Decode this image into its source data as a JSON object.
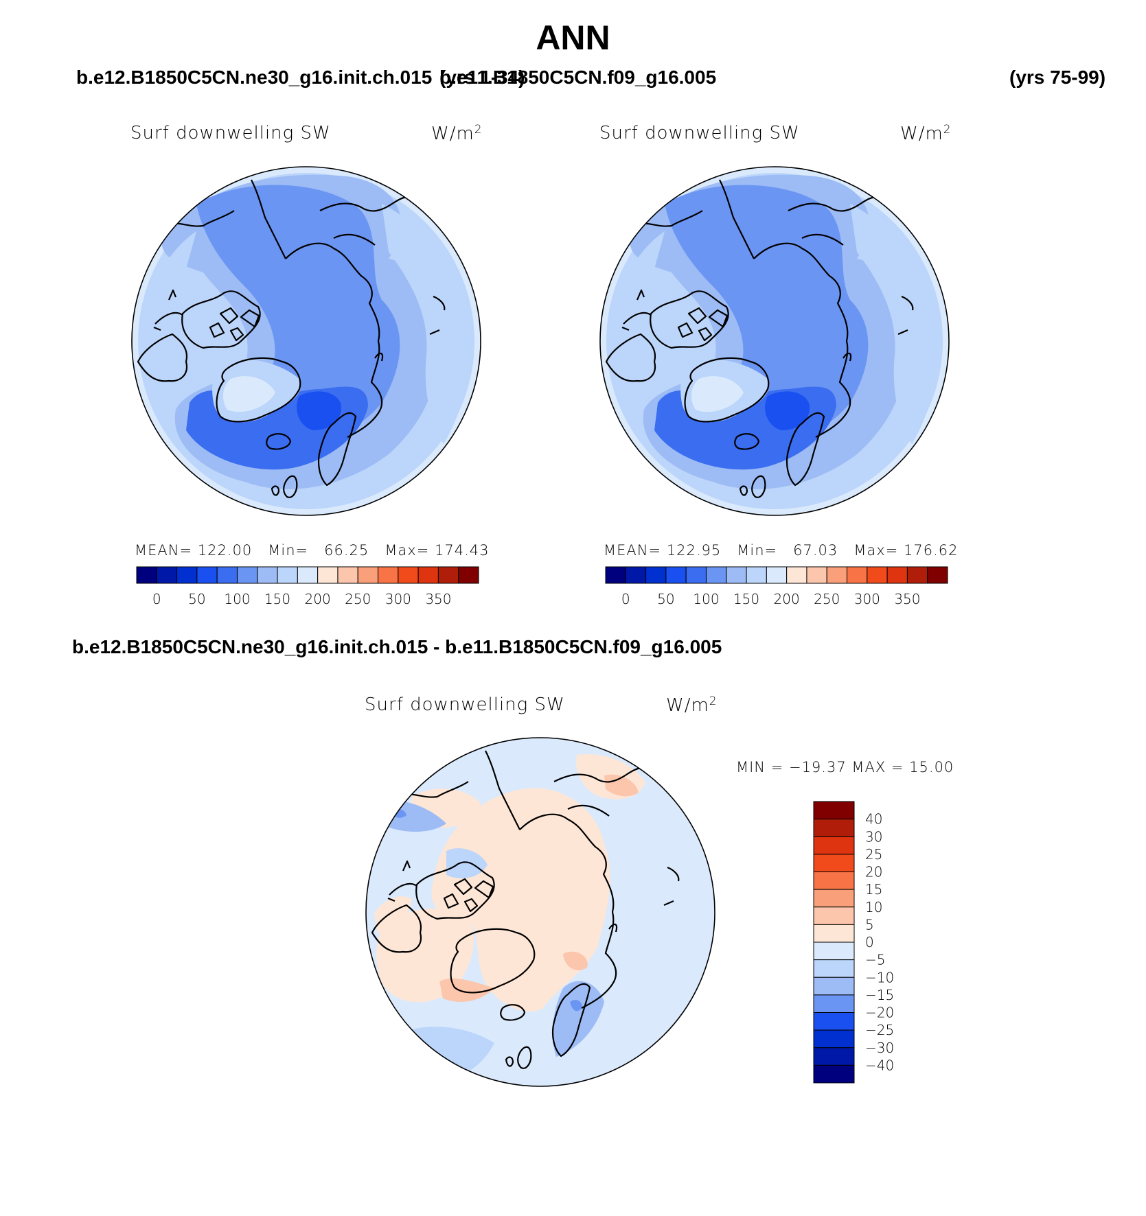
{
  "header": {
    "title": "ANN",
    "case_a": "b.e12.B1850C5CN.ne30_g16.init.ch.015",
    "case_a_years": "(yrs 1-34)",
    "case_b": "b.e11.B1850C5CN.f09_g16.005",
    "case_b_years": "(yrs 75-99)",
    "diff_label": "b.e12.B1850C5CN.ne30_g16.init.ch.015 - b.e11.B1850C5CN.f09_g16.005"
  },
  "panels": [
    {
      "id": "case-a",
      "variable": "Surf downwelling SW",
      "unit_base": "W/m",
      "unit_exp": "2",
      "stats": {
        "mean_label": "MEAN=",
        "mean": "122.00",
        "min_label": "Min=",
        "min": "66.25",
        "max_label": "Max=",
        "max": "174.43"
      }
    },
    {
      "id": "case-b",
      "variable": "Surf downwelling SW",
      "unit_base": "W/m",
      "unit_exp": "2",
      "stats": {
        "mean_label": "MEAN=",
        "mean": "122.95",
        "min_label": "Min=",
        "min": "67.03",
        "max_label": "Max=",
        "max": "176.62"
      }
    },
    {
      "id": "difference",
      "variable": "Surf downwelling SW",
      "unit_base": "W/m",
      "unit_exp": "2",
      "stats_text": "MIN = −19.37 MAX =   15.00"
    }
  ],
  "colorbar_abs": {
    "colors": [
      "#00007f",
      "#0018a8",
      "#0030d0",
      "#1a50f0",
      "#3a6df0",
      "#6b95f2",
      "#9dbcf5",
      "#bcd5fa",
      "#daeafc",
      "#fde6d6",
      "#fcc6ac",
      "#f9a07a",
      "#f87446",
      "#f14b1c",
      "#de3510",
      "#b01e0a",
      "#800000"
    ],
    "labels": [
      "0",
      "50",
      "100",
      "150",
      "200",
      "250",
      "300",
      "350"
    ]
  },
  "colorbar_diff": {
    "colors_top_to_bottom": [
      "#800000",
      "#b01e0a",
      "#de3510",
      "#f14b1c",
      "#f87446",
      "#f9a07a",
      "#fcc6ac",
      "#fde6d6",
      "#daeafc",
      "#bcd5fa",
      "#9dbcf5",
      "#6b95f2",
      "#1a50f0",
      "#0030d0",
      "#0018a8",
      "#00007f"
    ],
    "labels": [
      "40",
      "30",
      "25",
      "20",
      "15",
      "10",
      "5",
      "0",
      "−5",
      "−10",
      "−15",
      "−20",
      "−25",
      "−30",
      "−40"
    ]
  },
  "palette": {
    "level_170": "#daeafc",
    "level_150": "#bcd5fa",
    "level_125": "#9dbcf5",
    "level_100": "#6b95f2",
    "level_75": "#3a6df0",
    "level_50": "#1a50f0",
    "diff_pos5": "#fde6d6",
    "diff_pos10": "#fcc6ac",
    "diff_neg5": "#daeafc",
    "diff_neg10": "#bcd5fa",
    "diff_neg15": "#9dbcf5",
    "diff_neg20": "#6b95f2"
  }
}
